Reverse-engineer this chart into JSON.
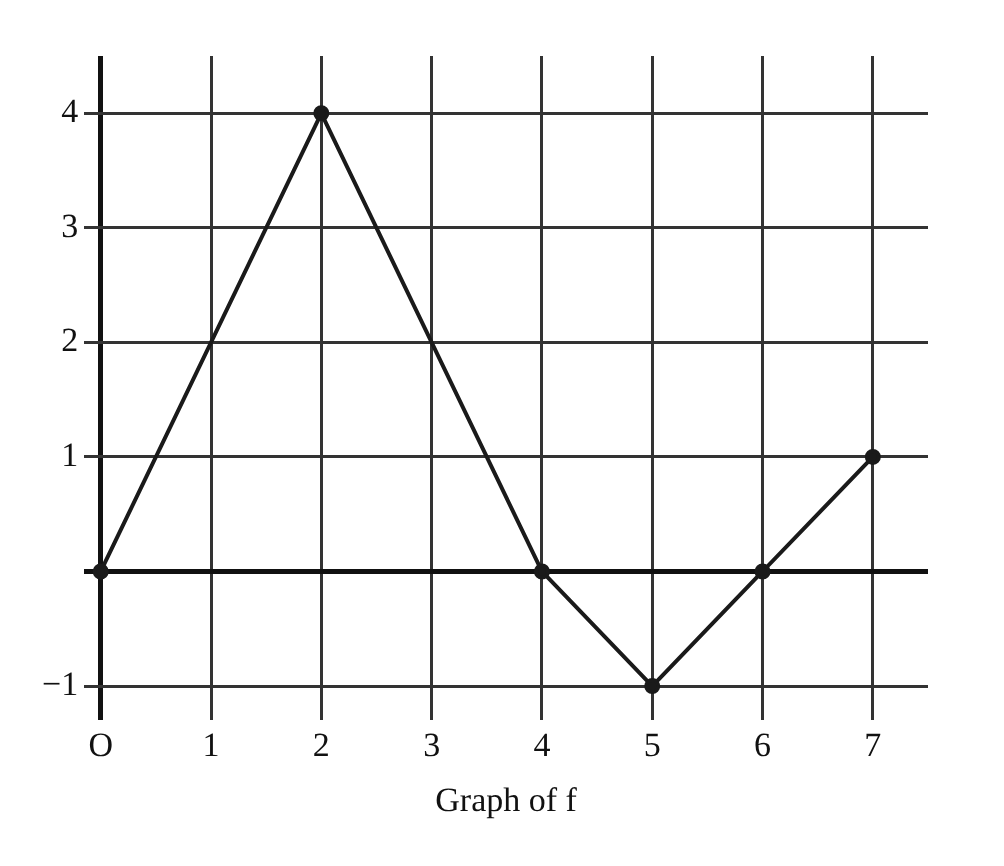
{
  "chart_data": {
    "type": "line",
    "xlabel": "Graph of f",
    "x": [
      0,
      2,
      4,
      5,
      6,
      7
    ],
    "series": [
      {
        "color": "#1a1a1a",
        "values": [
          0,
          4,
          0,
          -1,
          0,
          1
        ]
      }
    ],
    "xlim": [
      -0.15,
      7.5
    ],
    "xticks": [
      {
        "value": 0,
        "label": "O"
      },
      1,
      2,
      3,
      4,
      5,
      6,
      7
    ],
    "ylim": [
      -1.3,
      4.5
    ],
    "yticks": [
      -1,
      {
        "value": 0,
        "label": null
      },
      1,
      2,
      3,
      4
    ],
    "grid": true,
    "legend": false,
    "marker": "circle",
    "line_style": "solid"
  }
}
